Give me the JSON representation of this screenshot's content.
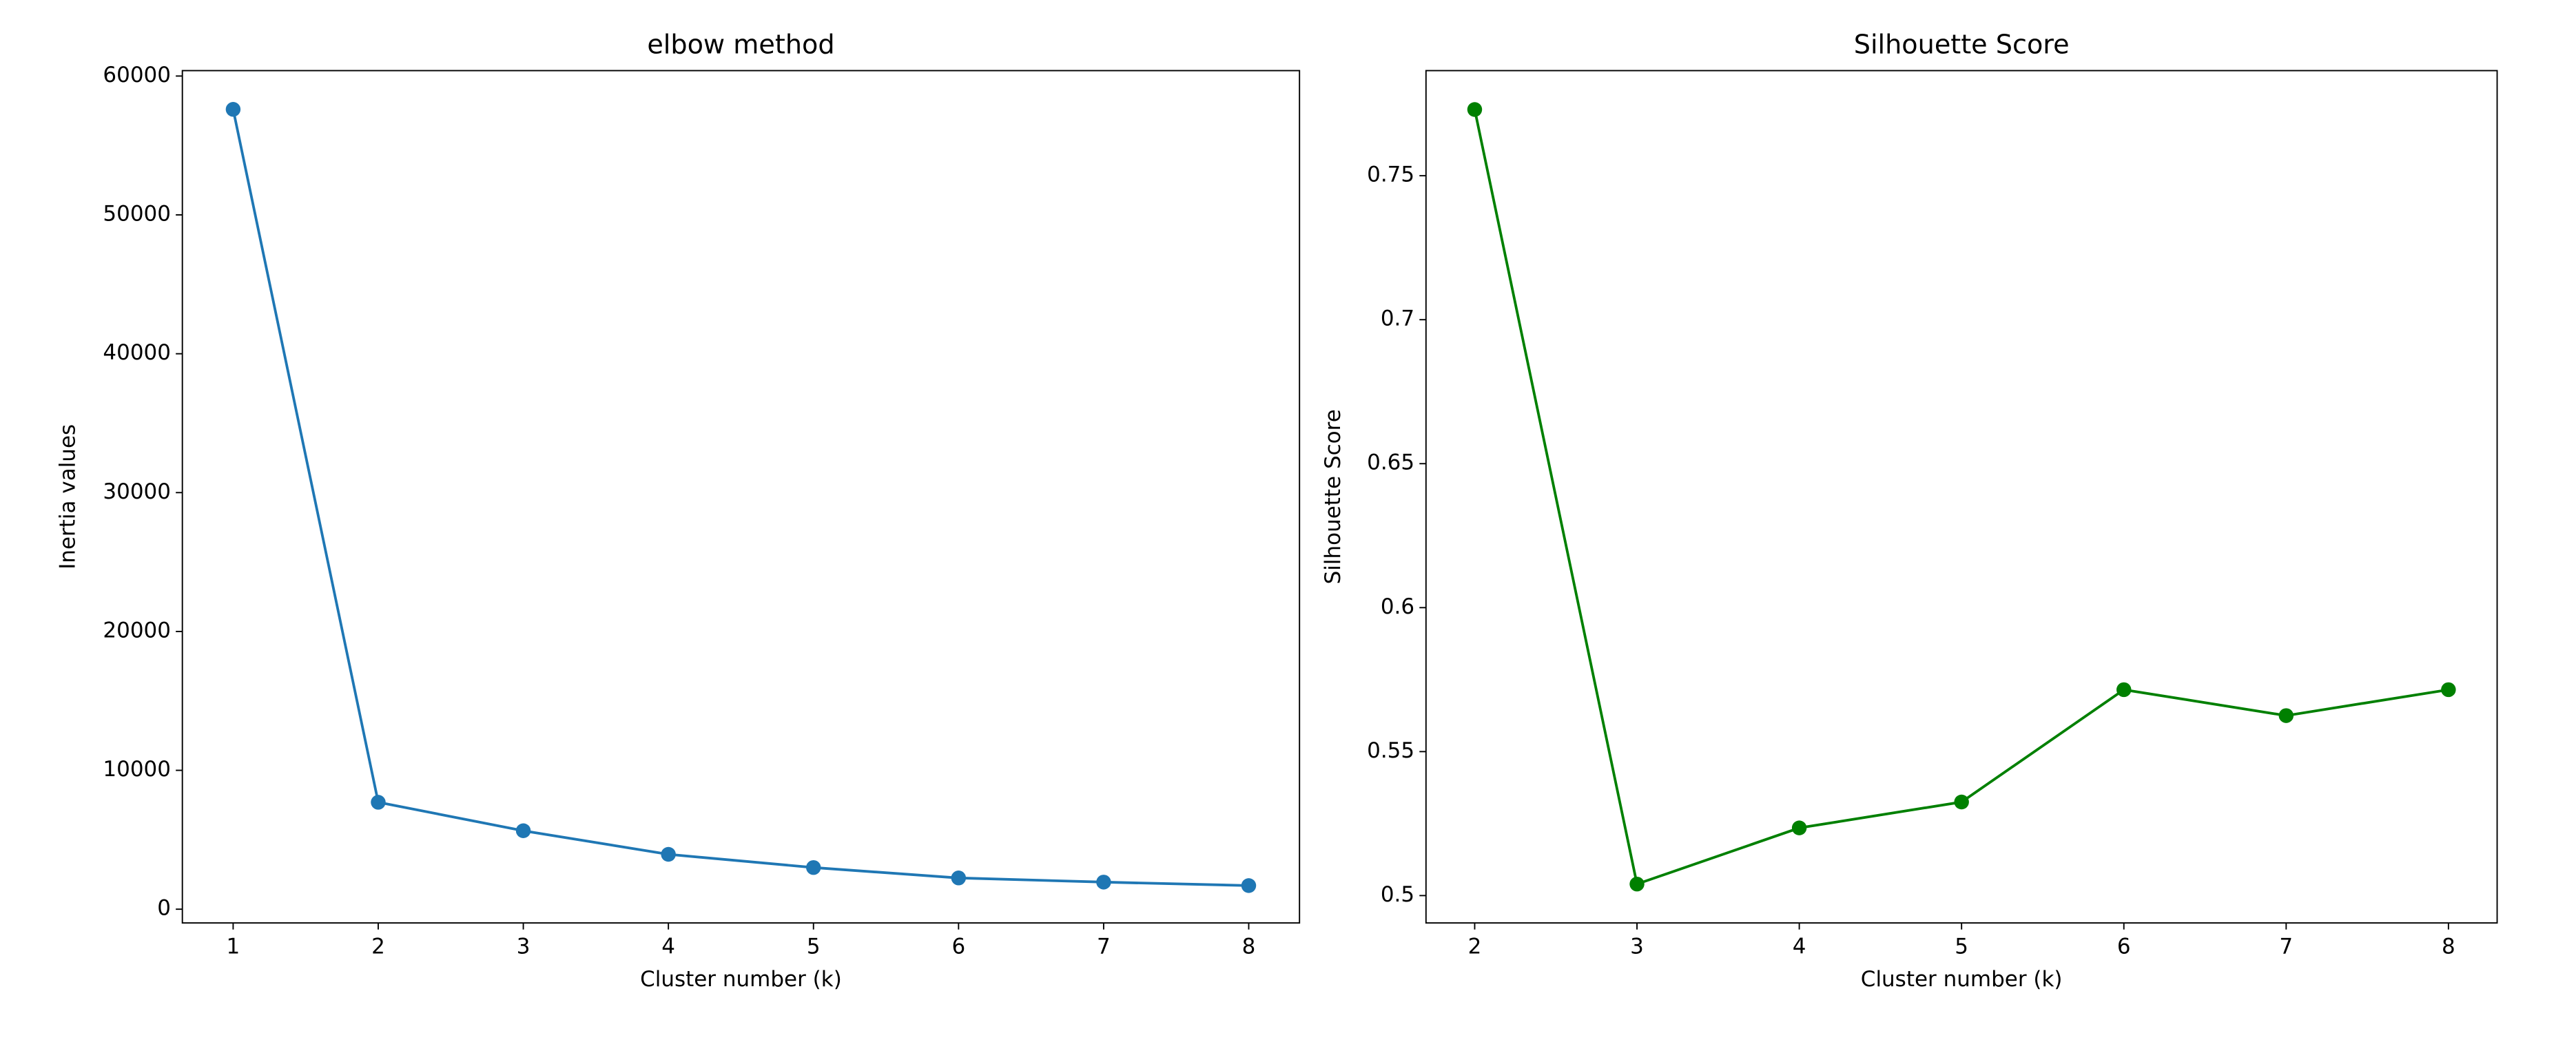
{
  "chart_data": [
    {
      "type": "line",
      "title": "elbow method",
      "x_label": "Cluster number (k)",
      "y_label": "Inertia values",
      "x": [
        1,
        2,
        3,
        4,
        5,
        6,
        7,
        8
      ],
      "series": [
        {
          "color": "#1f77b4",
          "values": [
            57600,
            7700,
            5650,
            3950,
            3000,
            2250,
            1950,
            1700
          ]
        }
      ],
      "xlim": [
        0.65,
        8.35
      ],
      "xticks": [
        1,
        2,
        3,
        4,
        5,
        6,
        7,
        8
      ],
      "ylim": [
        -990,
        60390
      ],
      "yticks": [
        0,
        10000,
        20000,
        30000,
        40000,
        50000,
        60000
      ],
      "marker": "o"
    },
    {
      "type": "line",
      "title": "Silhouette Score",
      "x_label": "Cluster number (k)",
      "y_label": "Silhouette Score",
      "x": [
        2,
        3,
        4,
        5,
        6,
        7,
        8
      ],
      "series": [
        {
          "color": "#008000",
          "values": [
            0.773,
            0.504,
            0.5235,
            0.5325,
            0.5715,
            0.5625,
            0.5715
          ]
        }
      ],
      "xlim": [
        1.7,
        8.3
      ],
      "xticks": [
        2,
        3,
        4,
        5,
        6,
        7,
        8
      ],
      "ylim": [
        0.4905,
        0.7865
      ],
      "yticks": [
        0.5,
        0.55,
        0.6,
        0.65,
        0.7,
        0.75
      ],
      "marker": "o"
    }
  ]
}
